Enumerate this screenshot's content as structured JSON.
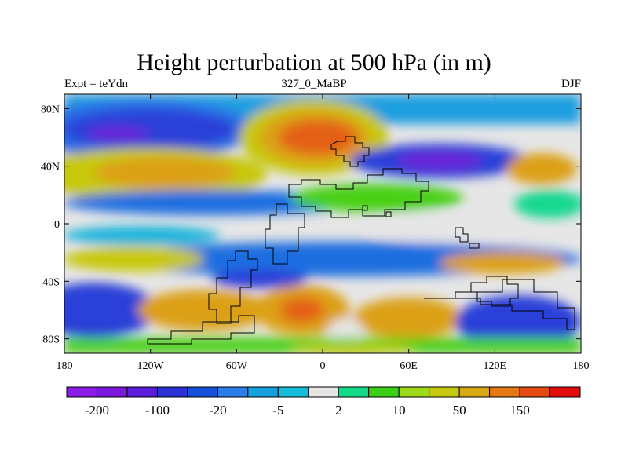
{
  "title": "Height perturbation at 500 hPa (in m)",
  "subtitle_left": "Expt = teYdn",
  "subtitle_center": "327_0_MaBP",
  "subtitle_right": "DJF",
  "lat_ticks": [
    "80N",
    "40N",
    "0",
    "40S",
    "80S"
  ],
  "lat_values": [
    80,
    40,
    0,
    -40,
    -80
  ],
  "lon_ticks": [
    "180",
    "120W",
    "60W",
    "0",
    "60E",
    "120E",
    "180"
  ],
  "lon_values": [
    -180,
    -120,
    -60,
    0,
    60,
    120,
    180
  ],
  "colorbar": {
    "colors": [
      "#8a1ee6",
      "#7a18dc",
      "#5a1cd8",
      "#2a32d6",
      "#1652d8",
      "#2a7ee8",
      "#16a0dc",
      "#14bcd8",
      "#e6e6e6",
      "#12dc8a",
      "#3ccf18",
      "#9ed81a",
      "#c8c810",
      "#d8a814",
      "#e47818",
      "#e64a14",
      "#e00e0e"
    ],
    "labels": [
      "-200",
      "-100",
      "-20",
      "-5",
      "2",
      "10",
      "50",
      "150"
    ]
  },
  "colors": {
    "strong_neg": "#6a20d8",
    "neg": "#2a40d8",
    "mid_neg": "#1a6ee0",
    "weak_neg": "#18b4dc",
    "neutral": "#e6e6e6",
    "weak_pos": "#14d890",
    "pos": "#48d018",
    "mid_pos": "#b8cc14",
    "strong_pos": "#dca014",
    "very_pos": "#e46018",
    "extreme_pos": "#e02010"
  }
}
